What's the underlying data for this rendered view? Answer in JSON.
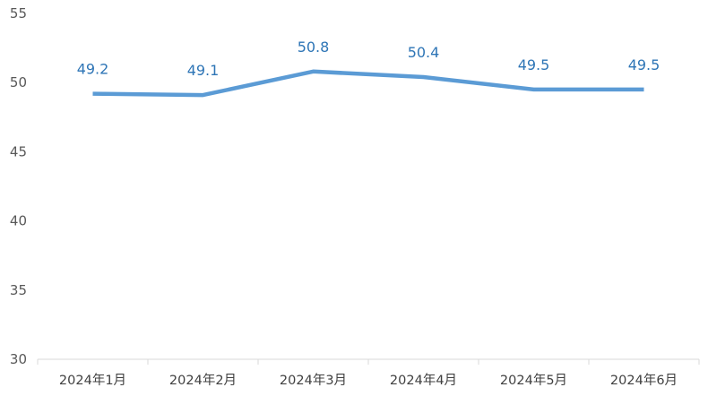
{
  "chart_data": {
    "type": "line",
    "categories": [
      "2024年1月",
      "2024年2月",
      "2024年3月",
      "2024年4月",
      "2024年5月",
      "2024年6月"
    ],
    "series": [
      {
        "values": [
          49.2,
          49.1,
          50.8,
          50.4,
          49.5,
          49.5
        ]
      }
    ],
    "data_labels": [
      "49.2",
      "49.1",
      "50.8",
      "50.4",
      "49.5",
      "49.5"
    ],
    "title": "",
    "xlabel": "",
    "ylabel": "",
    "ylim": [
      30,
      55
    ],
    "yticks": [
      "30",
      "35",
      "40",
      "45",
      "50",
      "55"
    ],
    "grid": false,
    "legend": "none",
    "colors": {
      "line": "#5b9bd5",
      "label": "#2e75b6",
      "axis": "#d9d9d9"
    }
  }
}
